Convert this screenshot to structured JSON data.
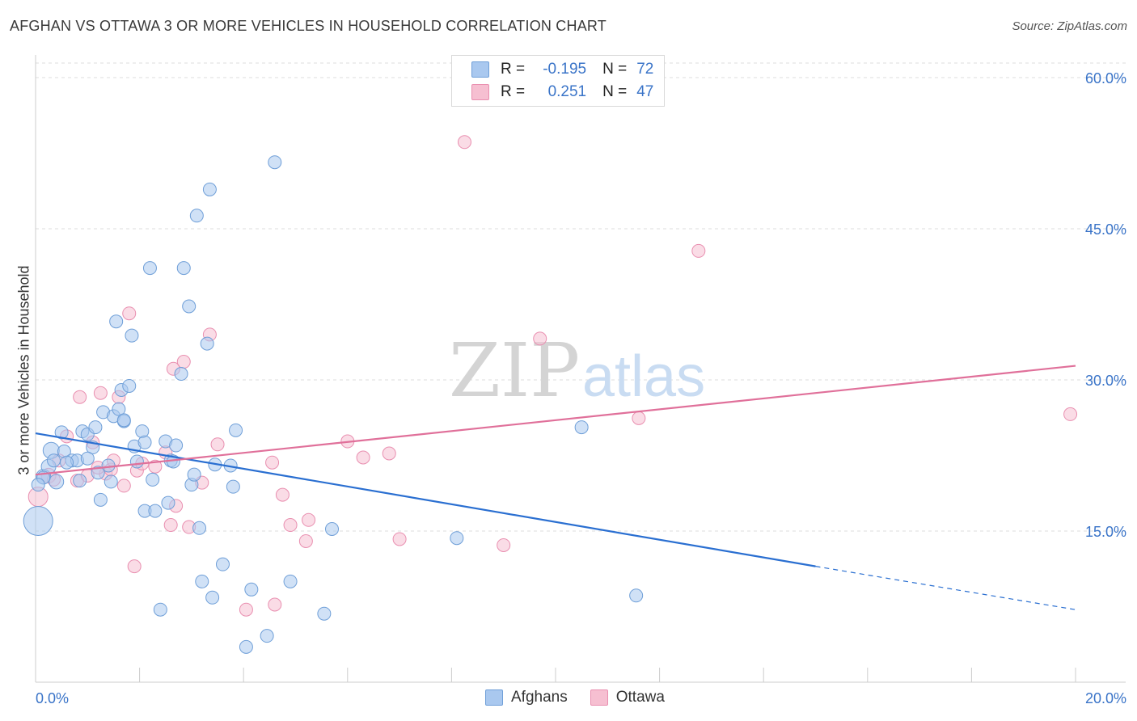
{
  "title": "AFGHAN VS OTTAWA 3 OR MORE VEHICLES IN HOUSEHOLD CORRELATION CHART",
  "source": "Source: ZipAtlas.com",
  "watermark": {
    "zip": "ZIP",
    "atlas": "atlas"
  },
  "legend_top": {
    "rows": [
      {
        "r_label": "R =",
        "r_value": "-0.195",
        "n_label": "N =",
        "n_value": "72"
      },
      {
        "r_label": "R =",
        "r_value": "0.251",
        "n_label": "N =",
        "n_value": "47"
      }
    ]
  },
  "legend_bottom": {
    "afghans": "Afghans",
    "ottawa": "Ottawa"
  },
  "colors": {
    "afghans_fill": "#a9c8ef",
    "afghans_stroke": "#6f9fd8",
    "afghans_line": "#2a6fd1",
    "ottawa_fill": "#f6bfd1",
    "ottawa_stroke": "#e98fb0",
    "ottawa_line": "#e0709a",
    "tick_label": "#3a74c8",
    "grid": "#dddddd"
  },
  "chart_data": {
    "type": "scatter",
    "title": "AFGHAN VS OTTAWA 3 OR MORE VEHICLES IN HOUSEHOLD CORRELATION CHART",
    "xlabel": "",
    "ylabel": "3 or more Vehicles in Household",
    "xlim": [
      0,
      20
    ],
    "ylim": [
      0,
      60
    ],
    "x_tick_labels": [
      "0.0%",
      "20.0%"
    ],
    "y_tick_labels": [
      "15.0%",
      "30.0%",
      "45.0%",
      "60.0%"
    ],
    "y_ticks": [
      15,
      30,
      45,
      60
    ],
    "grid": true,
    "legend_placement": "top-center",
    "series": [
      {
        "name": "Afghans",
        "r": -0.195,
        "n": 72,
        "trend": {
          "x0": 0,
          "y0": 24.7,
          "x1": 15,
          "y1": 11.5,
          "dash_to_x": 20,
          "dash_to_y": 7.2
        },
        "points": [
          [
            0.05,
            16.0,
            18
          ],
          [
            0.15,
            20.4,
            9
          ],
          [
            0.25,
            21.4,
            9
          ],
          [
            0.4,
            19.9,
            9
          ],
          [
            0.3,
            23.0,
            10
          ],
          [
            0.5,
            24.8,
            8
          ],
          [
            0.55,
            22.9,
            8
          ],
          [
            0.7,
            22.0,
            8
          ],
          [
            0.8,
            22.0,
            8
          ],
          [
            0.85,
            20.0,
            8
          ],
          [
            0.9,
            24.9,
            8
          ],
          [
            1.0,
            24.6,
            8
          ],
          [
            1.1,
            23.3,
            8
          ],
          [
            1.15,
            25.3,
            8
          ],
          [
            1.2,
            20.8,
            8
          ],
          [
            1.25,
            18.1,
            8
          ],
          [
            1.3,
            26.8,
            8
          ],
          [
            1.4,
            21.5,
            8
          ],
          [
            1.45,
            19.9,
            8
          ],
          [
            1.5,
            26.4,
            8
          ],
          [
            1.55,
            35.8,
            8
          ],
          [
            1.6,
            27.1,
            8
          ],
          [
            1.65,
            29.0,
            8
          ],
          [
            1.7,
            25.9,
            8
          ],
          [
            1.8,
            29.4,
            8
          ],
          [
            1.85,
            34.4,
            8
          ],
          [
            1.9,
            23.4,
            8
          ],
          [
            1.95,
            21.9,
            8
          ],
          [
            2.05,
            24.9,
            8
          ],
          [
            2.1,
            17.0,
            8
          ],
          [
            2.2,
            41.1,
            8
          ],
          [
            2.25,
            20.1,
            8
          ],
          [
            2.3,
            17.0,
            8
          ],
          [
            2.4,
            7.2,
            8
          ],
          [
            2.5,
            23.9,
            8
          ],
          [
            2.55,
            17.8,
            8
          ],
          [
            2.6,
            22.0,
            8
          ],
          [
            2.65,
            21.9,
            8
          ],
          [
            2.7,
            23.5,
            8
          ],
          [
            2.8,
            30.6,
            8
          ],
          [
            2.85,
            41.1,
            8
          ],
          [
            2.95,
            37.3,
            8
          ],
          [
            3.0,
            19.6,
            8
          ],
          [
            3.05,
            20.6,
            8
          ],
          [
            3.1,
            46.3,
            8
          ],
          [
            3.15,
            15.3,
            8
          ],
          [
            3.2,
            10.0,
            8
          ],
          [
            3.3,
            33.6,
            8
          ],
          [
            3.35,
            48.9,
            8
          ],
          [
            3.4,
            8.4,
            8
          ],
          [
            3.45,
            21.6,
            8
          ],
          [
            3.6,
            11.7,
            8
          ],
          [
            3.75,
            21.5,
            8
          ],
          [
            3.8,
            19.4,
            8
          ],
          [
            3.85,
            25.0,
            8
          ],
          [
            4.05,
            3.5,
            8
          ],
          [
            4.15,
            9.2,
            8
          ],
          [
            4.45,
            4.6,
            8
          ],
          [
            4.6,
            51.6,
            8
          ],
          [
            4.9,
            10.0,
            8
          ],
          [
            5.55,
            6.8,
            8
          ],
          [
            5.7,
            15.2,
            8
          ],
          [
            8.1,
            14.3,
            8
          ],
          [
            10.5,
            25.3,
            8
          ],
          [
            11.55,
            8.6,
            8
          ],
          [
            0.15,
            20.3,
            8
          ],
          [
            0.35,
            22.0,
            8
          ],
          [
            0.6,
            21.8,
            8
          ],
          [
            1.0,
            22.2,
            8
          ],
          [
            1.7,
            26.0,
            8
          ],
          [
            2.1,
            23.8,
            8
          ],
          [
            0.05,
            19.6,
            8
          ]
        ]
      },
      {
        "name": "Ottawa",
        "r": 0.251,
        "n": 47,
        "trend": {
          "x0": 0,
          "y0": 20.6,
          "x1": 20,
          "y1": 31.4
        },
        "points": [
          [
            0.05,
            18.4,
            12
          ],
          [
            0.25,
            20.5,
            9
          ],
          [
            0.45,
            22.0,
            8
          ],
          [
            0.6,
            24.4,
            8
          ],
          [
            0.8,
            20.0,
            8
          ],
          [
            0.85,
            28.3,
            8
          ],
          [
            1.0,
            20.5,
            8
          ],
          [
            1.1,
            23.8,
            8
          ],
          [
            1.25,
            28.7,
            8
          ],
          [
            1.35,
            20.7,
            8
          ],
          [
            1.45,
            21.1,
            8
          ],
          [
            1.5,
            22.0,
            8
          ],
          [
            1.6,
            28.3,
            8
          ],
          [
            1.7,
            19.5,
            8
          ],
          [
            1.8,
            36.6,
            8
          ],
          [
            1.9,
            11.5,
            8
          ],
          [
            1.95,
            21.0,
            8
          ],
          [
            2.05,
            21.7,
            8
          ],
          [
            2.5,
            22.8,
            8
          ],
          [
            2.6,
            15.6,
            8
          ],
          [
            2.65,
            31.1,
            8
          ],
          [
            2.7,
            17.5,
            8
          ],
          [
            2.85,
            31.8,
            8
          ],
          [
            2.95,
            15.4,
            8
          ],
          [
            3.2,
            19.8,
            8
          ],
          [
            3.35,
            34.5,
            8
          ],
          [
            3.5,
            23.6,
            8
          ],
          [
            4.05,
            7.2,
            8
          ],
          [
            4.55,
            21.8,
            8
          ],
          [
            4.6,
            7.7,
            8
          ],
          [
            4.75,
            18.6,
            8
          ],
          [
            4.9,
            15.6,
            8
          ],
          [
            5.2,
            14.0,
            8
          ],
          [
            5.25,
            16.1,
            8
          ],
          [
            6.0,
            23.9,
            8
          ],
          [
            6.3,
            22.3,
            8
          ],
          [
            6.8,
            22.7,
            8
          ],
          [
            7.0,
            14.2,
            8
          ],
          [
            8.25,
            53.6,
            8
          ],
          [
            9.0,
            13.6,
            8
          ],
          [
            9.7,
            34.1,
            8
          ],
          [
            11.6,
            26.2,
            8
          ],
          [
            12.75,
            42.8,
            8
          ],
          [
            19.9,
            26.6,
            8
          ],
          [
            0.35,
            20.1,
            8
          ],
          [
            1.2,
            21.3,
            8
          ],
          [
            2.3,
            21.4,
            8
          ]
        ]
      }
    ]
  }
}
